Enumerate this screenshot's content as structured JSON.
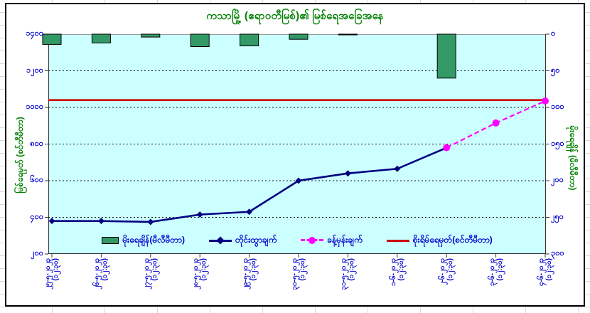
{
  "chart_data": {
    "type": "combo",
    "title": "ကသာမြို့ (ဧရာဝတီမြစ်)၏ မြစ်ရေအခြေအနေ",
    "title_color": "#008000",
    "plot_bg": "#CCFFFF",
    "categories": [
      "၂၅-၅-၂၀၂၃",
      "၂၆-၅-၂၀၂၃",
      "၂၇-၅-၂၀၂၃",
      "၂၈-၅-၂၀၂၃",
      "၂၉-၅-၂၀၂၃",
      "၃၀-၅-၂၀၂၃",
      "၃၁-၅-၂၀၂၃",
      "၁-၆-၂၀၂၃",
      "၂-၆-၂၀၂၃",
      "၃-၆-၂၀၂၃",
      "၄-၆-၂၀၂၃"
    ],
    "category_time": "(၁၂:၃၀)",
    "left_axis": {
      "title": "မြစ်ရေမှတ် (စင်တီမီတာ)",
      "min": 200,
      "max": 1400,
      "step": 200,
      "tick_labels": [
        "၁၄၀၀",
        "၁၂၀၀",
        "၁၀၀၀",
        "၈၀၀",
        "၆၀၀",
        "၄၀၀",
        "၂၀၀"
      ],
      "label_color": "#0000CC"
    },
    "right_axis": {
      "title": "မိုးရေချိန် (မီလီမီတာ)",
      "min": 0,
      "max": 300,
      "step": 50,
      "direction": "down",
      "tick_labels": [
        "၀",
        "၅၀",
        "၁၀၀",
        "၁၅၀",
        "၂၀၀",
        "၂၅၀",
        "၃၀၀"
      ]
    },
    "series": [
      {
        "name": "မိုးရေချိန်(မီလီမီတာ)",
        "type": "bar",
        "axis": "right",
        "color": "#339966",
        "values": [
          14,
          12,
          4,
          17,
          16,
          7,
          1,
          0,
          60,
          null,
          null
        ]
      },
      {
        "name": "တိုင်းထွာချက်",
        "type": "line",
        "axis": "left",
        "color": "#000080",
        "marker": "diamond",
        "values": [
          380,
          380,
          375,
          415,
          430,
          600,
          640,
          665,
          780,
          null,
          null
        ]
      },
      {
        "name": "ခန့်မှန်းချက်",
        "type": "dashed-line",
        "axis": "left",
        "color": "#FF00FF",
        "marker": "circle",
        "values": [
          null,
          null,
          null,
          null,
          null,
          null,
          null,
          null,
          780,
          915,
          1035
        ]
      },
      {
        "name": "စိုးရိမ်ရေမှတ်(စင်တီမီတာ)",
        "type": "horizontal-line",
        "axis": "left",
        "color": "#CC0000",
        "value": 1040
      }
    ],
    "legend_position": "bottom-inside",
    "grid": "horizontal-dashed"
  }
}
